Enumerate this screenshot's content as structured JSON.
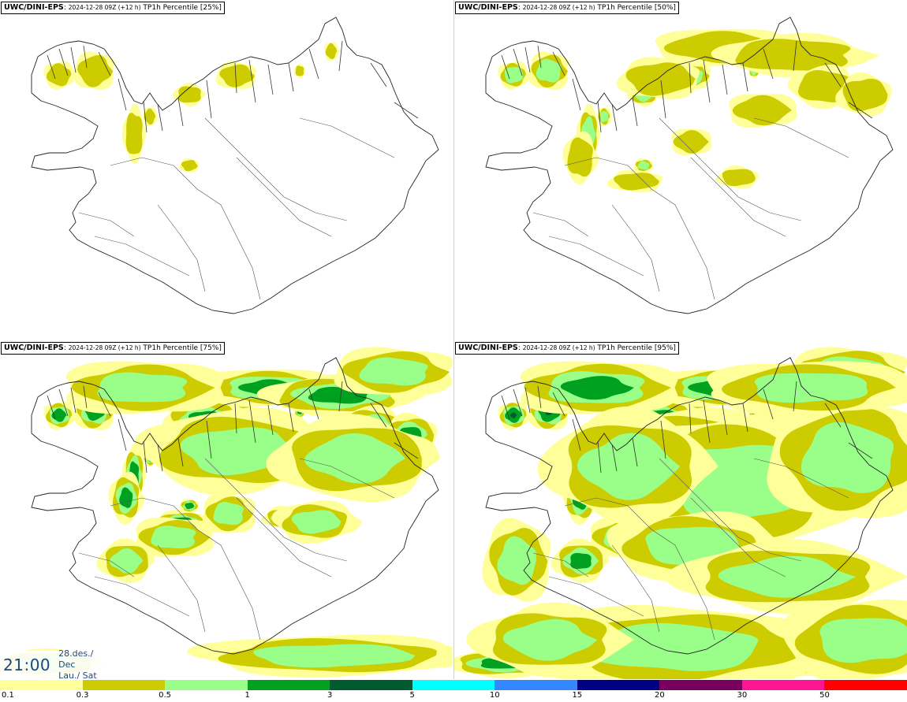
{
  "panels": [
    {
      "id": "p25",
      "model": "UWC/DINI-EPS",
      "run": "2024-12-28 09Z (+12 h)",
      "field": "TP1h Percentile [25%]",
      "intensity": 0
    },
    {
      "id": "p50",
      "model": "UWC/DINI-EPS",
      "run": "2024-12-28 09Z (+12 h)",
      "field": "TP1h Percentile [50%]",
      "intensity": 1
    },
    {
      "id": "p75",
      "model": "UWC/DINI-EPS",
      "run": "2024-12-28 09Z (+12 h)",
      "field": "TP1h Percentile [75%]",
      "intensity": 2
    },
    {
      "id": "p95",
      "model": "UWC/DINI-EPS",
      "run": "2024-12-28 09Z (+12 h)",
      "field": "TP1h Percentile [95%]",
      "intensity": 3
    }
  ],
  "valid_time": {
    "time": "21:00",
    "date": "28.des./ Dec",
    "day": "Lau./ Sat"
  },
  "legend": {
    "colors": [
      "#ffff99",
      "#cccc00",
      "#99ff88",
      "#00a020",
      "#005c30",
      "#00ffff",
      "#3388ff",
      "#000080",
      "#7a0060",
      "#ff1493",
      "#ff0000"
    ],
    "ticks": [
      "0.1",
      "0.3",
      "0.5",
      "1",
      "3",
      "5",
      "10",
      "15",
      "20",
      "30",
      "50"
    ]
  }
}
